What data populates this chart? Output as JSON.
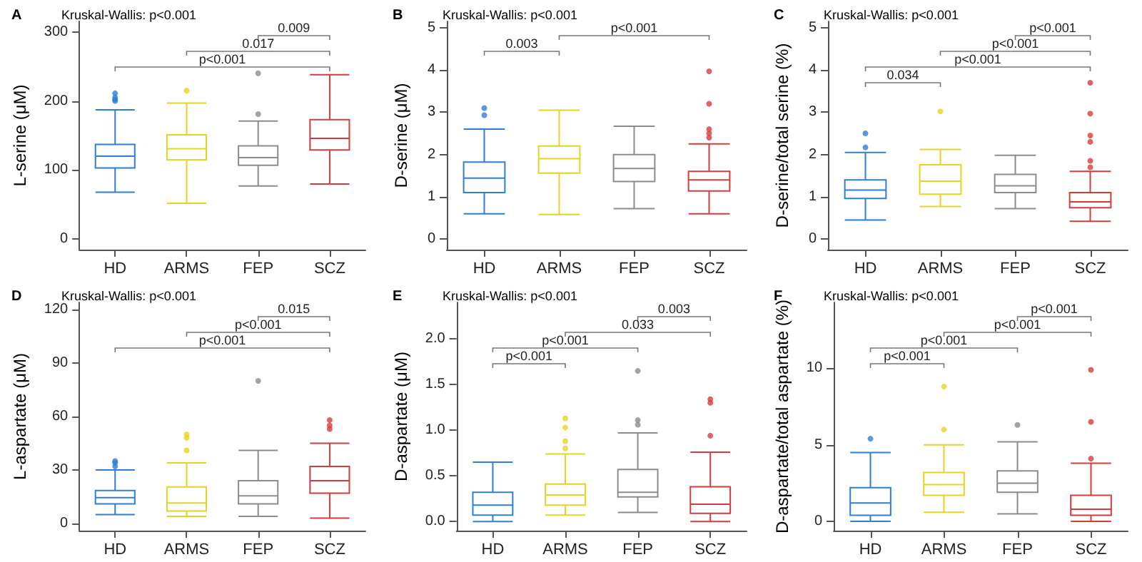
{
  "chart_data": [
    {
      "type": "box",
      "title": "A",
      "subtitle": "Kruskal-Wallis: p<0.001",
      "ylabel": "L-serine (μM)",
      "categories": [
        "HD",
        "ARMS",
        "FEP",
        "SCZ"
      ],
      "colors": [
        "#2f7ed8",
        "#e6d422",
        "#8c8c8c",
        "#d43d3d"
      ],
      "ylim": [
        -15,
        315
      ],
      "yticks": [
        0,
        100,
        200,
        300
      ],
      "grid": false,
      "boxes": [
        {
          "low": 68,
          "q1": 103,
          "median": 120,
          "q3": 137,
          "high": 187,
          "outliers": [
            200,
            202,
            205,
            211
          ]
        },
        {
          "low": 52,
          "q1": 115,
          "median": 131,
          "q3": 151,
          "high": 197,
          "outliers": [
            215
          ]
        },
        {
          "low": 77,
          "q1": 107,
          "median": 118,
          "q3": 135,
          "high": 171,
          "outliers": [
            181,
            240
          ]
        },
        {
          "low": 80,
          "q1": 129,
          "median": 146,
          "q3": 173,
          "high": 238
        }
      ],
      "annotations": [
        "0.009",
        "0.017",
        "p<0.001"
      ]
    },
    {
      "type": "box",
      "title": "B",
      "subtitle": "Kruskal-Wallis: p<0.001",
      "ylabel": "D-serine (μM)",
      "categories": [
        "HD",
        "ARMS",
        "FEP",
        "SCZ"
      ],
      "colors": [
        "#2f7ed8",
        "#e6d422",
        "#8c8c8c",
        "#d43d3d"
      ],
      "ylim": [
        -0.25,
        5.15
      ],
      "yticks": [
        0,
        1,
        2,
        3,
        4,
        5
      ],
      "grid": false,
      "boxes": [
        {
          "low": 0.6,
          "q1": 1.1,
          "median": 1.44,
          "q3": 1.82,
          "high": 2.6,
          "outliers": [
            2.93,
            3.1
          ]
        },
        {
          "low": 0.58,
          "q1": 1.56,
          "median": 1.9,
          "q3": 2.2,
          "high": 3.05
        },
        {
          "low": 0.72,
          "q1": 1.36,
          "median": 1.67,
          "q3": 2.0,
          "high": 2.67
        },
        {
          "low": 0.6,
          "q1": 1.14,
          "median": 1.4,
          "q3": 1.6,
          "high": 2.25,
          "outliers": [
            2.4,
            2.5,
            2.6,
            3.2,
            3.97
          ]
        }
      ],
      "annotations": [
        "p<0.001",
        "0.003"
      ]
    },
    {
      "type": "box",
      "title": "C",
      "subtitle": "Kruskal-Wallis: p<0.001",
      "ylabel": "D-serine/total serine (%)",
      "categories": [
        "HD",
        "ARMS",
        "FEP",
        "SCZ"
      ],
      "colors": [
        "#2f7ed8",
        "#e6d422",
        "#8c8c8c",
        "#d43d3d"
      ],
      "ylim": [
        -0.25,
        5.15
      ],
      "yticks": [
        0,
        1,
        2,
        3,
        4,
        5
      ],
      "grid": false,
      "boxes": [
        {
          "low": 0.45,
          "q1": 0.96,
          "median": 1.16,
          "q3": 1.4,
          "high": 2.05,
          "outliers": [
            2.17,
            2.5
          ]
        },
        {
          "low": 0.77,
          "q1": 1.06,
          "median": 1.37,
          "q3": 1.76,
          "high": 2.12,
          "outliers": [
            3.02
          ]
        },
        {
          "low": 0.72,
          "q1": 1.1,
          "median": 1.26,
          "q3": 1.53,
          "high": 1.98
        },
        {
          "low": 0.42,
          "q1": 0.74,
          "median": 0.88,
          "q3": 1.1,
          "high": 1.6,
          "outliers": [
            1.7,
            1.85,
            2.3,
            2.45,
            2.97,
            3.7
          ]
        }
      ],
      "annotations": [
        "p<0.001",
        "p<0.001",
        "p<0.001",
        "0.034"
      ]
    },
    {
      "type": "box",
      "title": "D",
      "subtitle": "Kruskal-Wallis: p<0.001",
      "ylabel": "L-aspartate (μM)",
      "categories": [
        "HD",
        "ARMS",
        "FEP",
        "SCZ"
      ],
      "colors": [
        "#2f7ed8",
        "#e6d422",
        "#8c8c8c",
        "#d43d3d"
      ],
      "ylim": [
        -4,
        124
      ],
      "yticks": [
        0,
        30,
        60,
        90,
        120
      ],
      "grid": false,
      "boxes": [
        {
          "low": 5,
          "q1": 11,
          "median": 14.5,
          "q3": 18.5,
          "high": 30,
          "outliers": [
            32,
            34,
            35
          ]
        },
        {
          "low": 4,
          "q1": 7,
          "median": 11.5,
          "q3": 20.5,
          "high": 34,
          "outliers": [
            41,
            48,
            50
          ]
        },
        {
          "low": 4,
          "q1": 11,
          "median": 15.5,
          "q3": 24,
          "high": 41,
          "outliers": [
            80
          ]
        },
        {
          "low": 3,
          "q1": 17,
          "median": 24,
          "q3": 32,
          "high": 45,
          "outliers": [
            53,
            55,
            58
          ]
        }
      ],
      "annotations": [
        "0.015",
        "p<0.001",
        "p<0.001"
      ]
    },
    {
      "type": "box",
      "title": "E",
      "subtitle": "Kruskal-Wallis: p<0.001",
      "ylabel": "D-aspartate (μM)",
      "categories": [
        "HD",
        "ARMS",
        "FEP",
        "SCZ"
      ],
      "colors": [
        "#2f7ed8",
        "#e6d422",
        "#8c8c8c",
        "#d43d3d"
      ],
      "ylim": [
        -0.1,
        2.4
      ],
      "yticks": [
        {
          "value": 0,
          "label": "0.0"
        },
        {
          "value": 0.5,
          "label": "0.5"
        },
        {
          "value": 1,
          "label": "1.0"
        },
        {
          "value": 1.5,
          "label": "1.5"
        },
        {
          "value": 2,
          "label": "2.0"
        }
      ],
      "grid": false,
      "boxes": [
        {
          "low": 0,
          "q1": 0.07,
          "median": 0.18,
          "q3": 0.32,
          "high": 0.65
        },
        {
          "low": 0.07,
          "q1": 0.18,
          "median": 0.29,
          "q3": 0.41,
          "high": 0.74,
          "outliers": [
            0.8,
            0.88,
            1.03,
            1.13
          ]
        },
        {
          "low": 0.1,
          "q1": 0.27,
          "median": 0.32,
          "q3": 0.57,
          "high": 0.97,
          "outliers": [
            1.06,
            1.11,
            1.65
          ]
        },
        {
          "low": 0,
          "q1": 0.09,
          "median": 0.19,
          "q3": 0.38,
          "high": 0.76,
          "outliers": [
            0.94,
            1.3,
            1.34
          ]
        }
      ],
      "annotations": [
        "0.003",
        "0.033",
        "p<0.001",
        "p<0.001"
      ]
    },
    {
      "type": "box",
      "title": "F",
      "subtitle": "Kruskal-Wallis: p<0.001",
      "ylabel": "D-aspartate/total aspartate (%)",
      "categories": [
        "HD",
        "ARMS",
        "FEP",
        "SCZ"
      ],
      "colors": [
        "#2f7ed8",
        "#e6d422",
        "#8c8c8c",
        "#d43d3d"
      ],
      "ylim": [
        -0.6,
        14.3
      ],
      "yticks": [
        0,
        5,
        10
      ],
      "grid": false,
      "boxes": [
        {
          "low": 0,
          "q1": 0.4,
          "median": 1.2,
          "q3": 2.2,
          "high": 4.5,
          "outliers": [
            5.4
          ]
        },
        {
          "low": 0.6,
          "q1": 1.7,
          "median": 2.4,
          "q3": 3.2,
          "high": 5.0,
          "outliers": [
            6.0,
            8.8
          ]
        },
        {
          "low": 0.5,
          "q1": 1.9,
          "median": 2.5,
          "q3": 3.3,
          "high": 5.2,
          "outliers": [
            6.3
          ]
        },
        {
          "low": 0,
          "q1": 0.4,
          "median": 0.8,
          "q3": 1.7,
          "high": 3.8,
          "outliers": [
            4.1,
            6.5,
            9.9
          ]
        }
      ],
      "annotations": [
        "p<0.001",
        "p<0.001",
        "p<0.001",
        "p<0.001"
      ]
    }
  ]
}
